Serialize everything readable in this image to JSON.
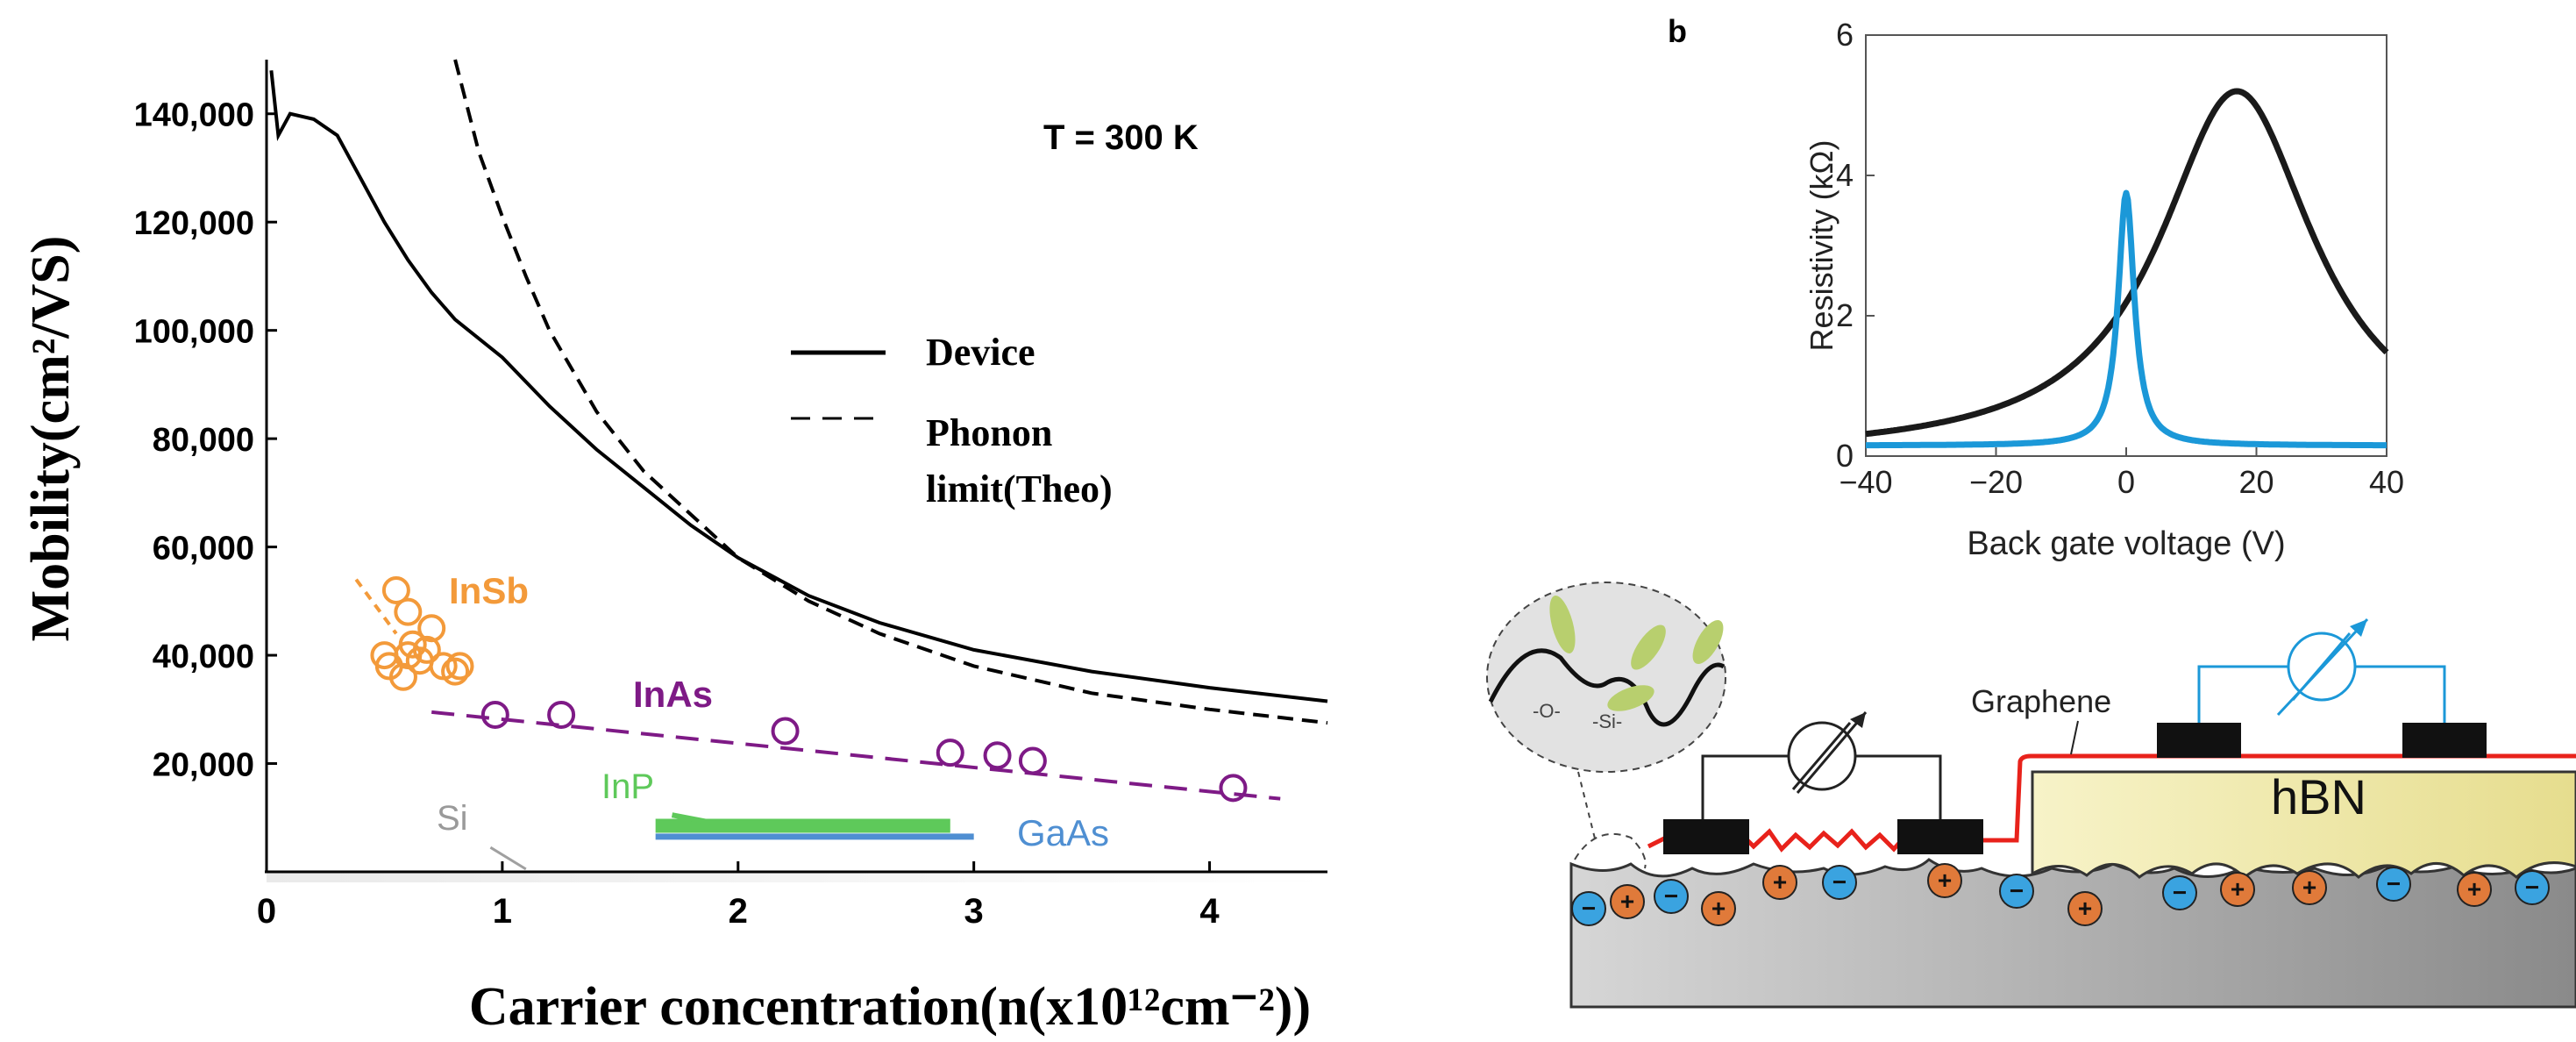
{
  "chart_data": [
    {
      "type": "line",
      "annotation": "T = 300 K",
      "xlabel": "Carrier concentration(n(x10¹²cm⁻²))",
      "ylabel": "Mobility(cm²/VS)",
      "xlim": [
        0,
        4.5
      ],
      "ylim": [
        0,
        150000
      ],
      "xticks": [
        "0",
        "1",
        "2",
        "3",
        "4"
      ],
      "yticks": [
        {
          "value": 20000,
          "label": "20,000"
        },
        {
          "value": 40000,
          "label": "40,000"
        },
        {
          "value": 60000,
          "label": "60,000"
        },
        {
          "value": 80000,
          "label": "80,000"
        },
        {
          "value": 100000,
          "label": "100,000"
        },
        {
          "value": 120000,
          "label": "120,000"
        },
        {
          "value": 140000,
          "label": "140,000"
        }
      ],
      "legend": [
        "Device",
        "Phonon",
        "limit(Theo)"
      ],
      "legend_position": "center-right",
      "series": [
        {
          "name": "Device",
          "style": "solid",
          "color": "#000000",
          "x": [
            0.02,
            0.05,
            0.1,
            0.2,
            0.3,
            0.4,
            0.5,
            0.6,
            0.7,
            0.8,
            1.0,
            1.2,
            1.4,
            1.6,
            1.8,
            2.0,
            2.3,
            2.6,
            3.0,
            3.5,
            4.0,
            4.5
          ],
          "y": [
            148000,
            136000,
            140000,
            139000,
            136000,
            128000,
            120000,
            113000,
            107000,
            102000,
            95000,
            86000,
            78000,
            71000,
            64000,
            58000,
            51000,
            46000,
            41000,
            37000,
            34000,
            31500
          ]
        },
        {
          "name": "Phonon limit(Theo)",
          "style": "dashed",
          "color": "#000000",
          "x": [
            0.8,
            0.9,
            1.0,
            1.1,
            1.2,
            1.4,
            1.6,
            1.8,
            2.0,
            2.3,
            2.6,
            3.0,
            3.5,
            4.0,
            4.5
          ],
          "y": [
            150000,
            133000,
            121000,
            110000,
            100000,
            85000,
            74000,
            66000,
            58000,
            50000,
            44000,
            38000,
            33000,
            30000,
            27500
          ]
        },
        {
          "name": "InSb",
          "style": "markers",
          "color": "#f39a3a",
          "x": [
            0.55,
            0.6,
            0.62,
            0.65,
            0.7,
            0.75,
            0.8,
            0.5,
            0.58,
            0.68,
            0.82,
            0.52,
            0.6
          ],
          "y": [
            52000,
            48000,
            42000,
            39000,
            45000,
            38000,
            37000,
            40000,
            36000,
            41000,
            38000,
            38000,
            40000
          ]
        },
        {
          "name": "InAs",
          "style": "dashed-markers",
          "color": "#7e1a86",
          "x": [
            0.97,
            1.25,
            2.2,
            2.9,
            3.1,
            3.25,
            4.1
          ],
          "y": [
            29000,
            29000,
            26000,
            22000,
            21500,
            20500,
            15500
          ]
        },
        {
          "name": "InP",
          "style": "band",
          "color": "#5ec95a",
          "x": [
            1.65,
            2.9
          ],
          "y": [
            8500,
            8500
          ]
        },
        {
          "name": "GaAs",
          "style": "band",
          "color": "#4f8fd2",
          "x": [
            1.65,
            3.0
          ],
          "y": [
            6500,
            6500
          ]
        },
        {
          "name": "Si",
          "style": "line",
          "color": "#a0a0a0",
          "x": [
            0.95,
            1.1
          ],
          "y": [
            4500,
            500
          ]
        }
      ],
      "series_labels": [
        {
          "text": "InSb",
          "color": "#f39a3a"
        },
        {
          "text": "InAs",
          "color": "#7e1a86"
        },
        {
          "text": "InP",
          "color": "#5ec95a"
        },
        {
          "text": "GaAs",
          "color": "#4f8fd2"
        },
        {
          "text": "Si",
          "color": "#9a9a9a"
        }
      ]
    },
    {
      "type": "line",
      "panel_label": "b",
      "xlabel": "Back gate voltage (V)",
      "ylabel": "Resistivity (kΩ)",
      "xlim": [
        -40,
        40
      ],
      "ylim": [
        0,
        6
      ],
      "xticks": [
        "−40",
        "−20",
        "0",
        "20",
        "40"
      ],
      "yticks": [
        "0",
        "2",
        "4",
        "6"
      ],
      "series": [
        {
          "color": "#1a1a1a",
          "center": 17,
          "peak": 5.2,
          "base": 0.0,
          "width": 14.5,
          "asym": 0.0
        },
        {
          "color": "#1b98d8",
          "center": 0,
          "peak": 3.75,
          "base": 0.15,
          "width": 1.5,
          "asym": 0.0
        }
      ]
    }
  ],
  "diagram": {
    "labels": {
      "graphene": "Graphene",
      "substrate_top": "hBN"
    },
    "charges": {
      "plus": "+",
      "minus": "−"
    },
    "colors": {
      "graphene_trace": "#e8221b",
      "electrode": "#111111",
      "hbn": "#f3edb0",
      "probe_left": "#222222",
      "probe_right": "#1b98d8",
      "plus_charge": "#e07a3a",
      "minus_charge": "#3aa3e0"
    }
  }
}
